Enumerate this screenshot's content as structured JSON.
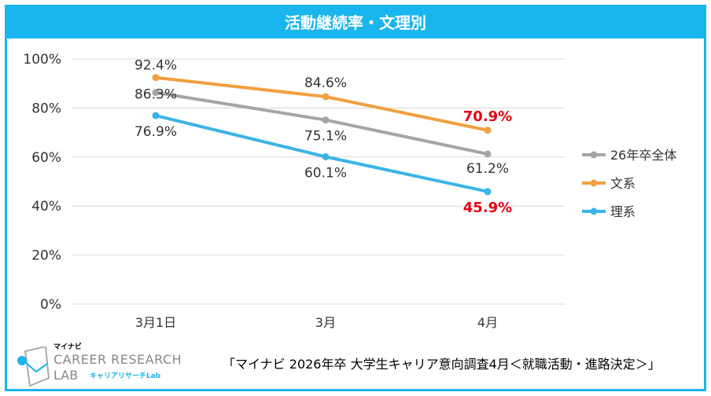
{
  "title": "活動継続率・文理別",
  "source": "「マイナビ  2026年卒  大学生キャリア意向調査4月＜就職活動・進路決定＞」",
  "logo": {
    "brand": "マイナビ",
    "line1": "CAREER RESEARCH",
    "line2": "LAB",
    "sub": "キャリアリサーチLab"
  },
  "chart_data": {
    "type": "line",
    "categories": [
      "3月1日",
      "3月",
      "4月"
    ],
    "ylim": [
      0,
      100
    ],
    "yticks": [
      "0%",
      "20%",
      "40%",
      "60%",
      "80%",
      "100%"
    ],
    "grid": true,
    "legend_position": "right",
    "series": [
      {
        "name": "26年卒全体",
        "color": "#a5a5a5",
        "values": [
          86.3,
          75.1,
          61.2
        ],
        "labels": [
          "86.3%",
          "75.1%",
          "61.2%"
        ]
      },
      {
        "name": "文系",
        "color": "#f0a040",
        "values": [
          92.4,
          84.6,
          70.9
        ],
        "labels": [
          "92.4%",
          "84.6%",
          "70.9%"
        ]
      },
      {
        "name": "理系",
        "color": "#3cb4e6",
        "values": [
          76.9,
          60.1,
          45.9
        ],
        "labels": [
          "76.9%",
          "60.1%",
          "45.9%"
        ]
      }
    ],
    "highlight_color": "#e60012"
  }
}
